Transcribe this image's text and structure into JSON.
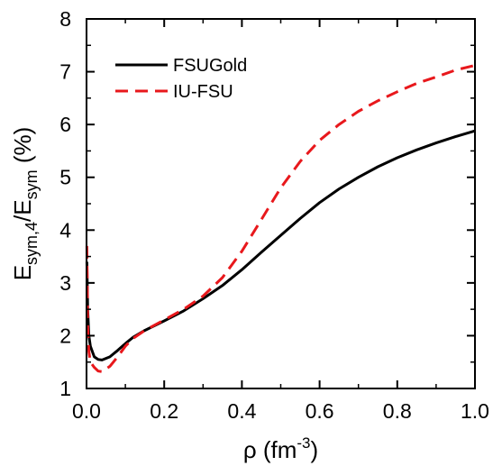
{
  "chart_data": {
    "type": "line",
    "xlabel": {
      "base": "ρ (fm",
      "sup": "-3",
      "tail": ")"
    },
    "ylabel": {
      "base1": "E",
      "sub1": "sym,4",
      "sep": "/E",
      "sub2": "sym",
      "tail": " (%)"
    },
    "xlim": [
      0.0,
      1.0
    ],
    "ylim": [
      1,
      8
    ],
    "xticks": [
      "0.0",
      "0.2",
      "0.4",
      "0.6",
      "0.8",
      "1.0"
    ],
    "xtick_values": [
      0.0,
      0.2,
      0.4,
      0.6,
      0.8,
      1.0
    ],
    "yticks": [
      "1",
      "2",
      "3",
      "4",
      "5",
      "6",
      "7",
      "8"
    ],
    "ytick_values": [
      1,
      2,
      3,
      4,
      5,
      6,
      7,
      8
    ],
    "grid": false,
    "legend_position": "top-left",
    "series": [
      {
        "name": "FSUGold",
        "color": "#000000",
        "dash": "solid",
        "points": [
          [
            0.001,
            3.4
          ],
          [
            0.003,
            2.5
          ],
          [
            0.006,
            2.0
          ],
          [
            0.01,
            1.8
          ],
          [
            0.02,
            1.6
          ],
          [
            0.03,
            1.55
          ],
          [
            0.04,
            1.54
          ],
          [
            0.06,
            1.6
          ],
          [
            0.08,
            1.72
          ],
          [
            0.1,
            1.85
          ],
          [
            0.12,
            1.97
          ],
          [
            0.15,
            2.1
          ],
          [
            0.2,
            2.28
          ],
          [
            0.25,
            2.47
          ],
          [
            0.3,
            2.7
          ],
          [
            0.35,
            2.95
          ],
          [
            0.4,
            3.25
          ],
          [
            0.45,
            3.58
          ],
          [
            0.5,
            3.9
          ],
          [
            0.55,
            4.22
          ],
          [
            0.6,
            4.52
          ],
          [
            0.65,
            4.78
          ],
          [
            0.7,
            5.0
          ],
          [
            0.75,
            5.2
          ],
          [
            0.8,
            5.37
          ],
          [
            0.85,
            5.52
          ],
          [
            0.9,
            5.65
          ],
          [
            0.95,
            5.77
          ],
          [
            1.0,
            5.88
          ]
        ]
      },
      {
        "name": "IU-FSU",
        "color": "#e8181c",
        "dash": "dashed",
        "points": [
          [
            0.001,
            3.7
          ],
          [
            0.003,
            2.2
          ],
          [
            0.006,
            1.7
          ],
          [
            0.01,
            1.5
          ],
          [
            0.02,
            1.4
          ],
          [
            0.03,
            1.33
          ],
          [
            0.04,
            1.32
          ],
          [
            0.06,
            1.42
          ],
          [
            0.08,
            1.6
          ],
          [
            0.1,
            1.8
          ],
          [
            0.12,
            1.95
          ],
          [
            0.15,
            2.1
          ],
          [
            0.2,
            2.3
          ],
          [
            0.25,
            2.5
          ],
          [
            0.3,
            2.75
          ],
          [
            0.35,
            3.1
          ],
          [
            0.4,
            3.6
          ],
          [
            0.45,
            4.2
          ],
          [
            0.5,
            4.8
          ],
          [
            0.55,
            5.3
          ],
          [
            0.6,
            5.7
          ],
          [
            0.65,
            6.0
          ],
          [
            0.7,
            6.25
          ],
          [
            0.75,
            6.45
          ],
          [
            0.8,
            6.62
          ],
          [
            0.85,
            6.78
          ],
          [
            0.9,
            6.9
          ],
          [
            0.95,
            7.03
          ],
          [
            1.0,
            7.12
          ]
        ]
      }
    ]
  }
}
